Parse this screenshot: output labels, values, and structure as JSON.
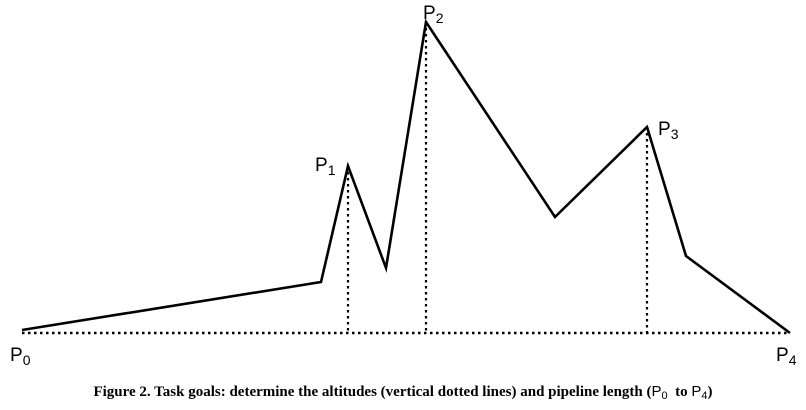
{
  "diagram": {
    "points": [
      {
        "id": "P0",
        "base": "P",
        "sub": "0"
      },
      {
        "id": "P1",
        "base": "P",
        "sub": "1"
      },
      {
        "id": "P2",
        "base": "P",
        "sub": "2"
      },
      {
        "id": "P3",
        "base": "P",
        "sub": "3"
      },
      {
        "id": "P4",
        "base": "P",
        "sub": "4"
      }
    ],
    "line_color": "#000000"
  },
  "caption": {
    "text": "Figure 2. Task goals: determine the altitudes (vertical dotted lines) and pipeline length (",
    "from_base": "P",
    "from_sub": "0",
    "middle": "  to ",
    "to_base": "P",
    "to_sub": "4",
    "end": ")"
  }
}
